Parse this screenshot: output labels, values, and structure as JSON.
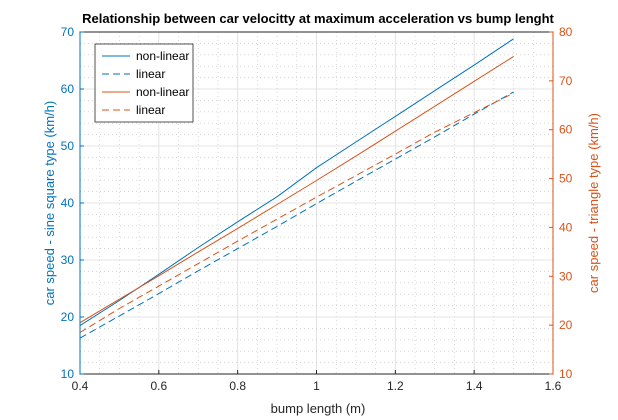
{
  "chart_data": {
    "type": "line",
    "title": "Relationship between car velocitty at maximum acceleration vs bump lenght",
    "xlabel": "bump length (m)",
    "ylabel_left": "car speed - sine square type (km/h)",
    "ylabel_right": "car speed - triangle type (km/h)",
    "xlim": [
      0.4,
      1.6
    ],
    "ylim_left": [
      10,
      70
    ],
    "ylim_right": [
      10,
      80
    ],
    "x_ticks": [
      "0.4",
      "0.6",
      "0.8",
      "1",
      "1.2",
      "1.4",
      "1.6"
    ],
    "y_ticks_left": [
      "10",
      "20",
      "30",
      "40",
      "50",
      "60",
      "70"
    ],
    "y_ticks_right": [
      "10",
      "20",
      "30",
      "40",
      "50",
      "60",
      "70",
      "80"
    ],
    "grid": "on",
    "legend_position": "top-left",
    "colors": {
      "left_axis": "#0072BD",
      "right_axis": "#D95319"
    },
    "series": [
      {
        "name": "non-linear",
        "axis": "left",
        "style": "solid",
        "color": "#0072BD",
        "x": [
          0.4,
          0.5,
          0.6,
          0.7,
          0.8,
          0.9,
          1.0,
          1.1,
          1.2,
          1.3,
          1.4,
          1.5
        ],
        "y": [
          18.5,
          22.9,
          27.5,
          32.2,
          36.7,
          41.1,
          46.2,
          50.7,
          55.2,
          59.7,
          64.2,
          68.8
        ]
      },
      {
        "name": "linear",
        "axis": "left",
        "style": "dashed",
        "color": "#0072BD",
        "x": [
          0.4,
          0.5,
          0.6,
          0.7,
          0.8,
          0.9,
          1.0,
          1.1,
          1.2,
          1.3,
          1.4,
          1.5
        ],
        "y": [
          16.3,
          20.2,
          24.1,
          28.1,
          32.0,
          35.9,
          39.9,
          43.8,
          47.7,
          51.6,
          55.6,
          59.5
        ]
      },
      {
        "name": "non-linear",
        "axis": "right",
        "style": "solid",
        "color": "#D95319",
        "x": [
          0.4,
          0.5,
          0.6,
          0.7,
          0.8,
          0.9,
          1.0,
          1.1,
          1.2,
          1.3,
          1.4,
          1.5
        ],
        "y": [
          20.5,
          25.3,
          30.1,
          35.0,
          39.8,
          44.7,
          49.6,
          54.6,
          59.7,
          64.8,
          69.9,
          75.0
        ]
      },
      {
        "name": "linear",
        "axis": "right",
        "style": "dashed",
        "color": "#D95319",
        "x": [
          0.4,
          0.5,
          0.6,
          0.7,
          0.8,
          0.9,
          1.0,
          1.1,
          1.2,
          1.3,
          1.4,
          1.5
        ],
        "y": [
          18.5,
          23.4,
          28.0,
          32.6,
          37.2,
          41.7,
          46.2,
          50.6,
          55.0,
          59.5,
          63.5,
          67.5
        ]
      }
    ]
  }
}
